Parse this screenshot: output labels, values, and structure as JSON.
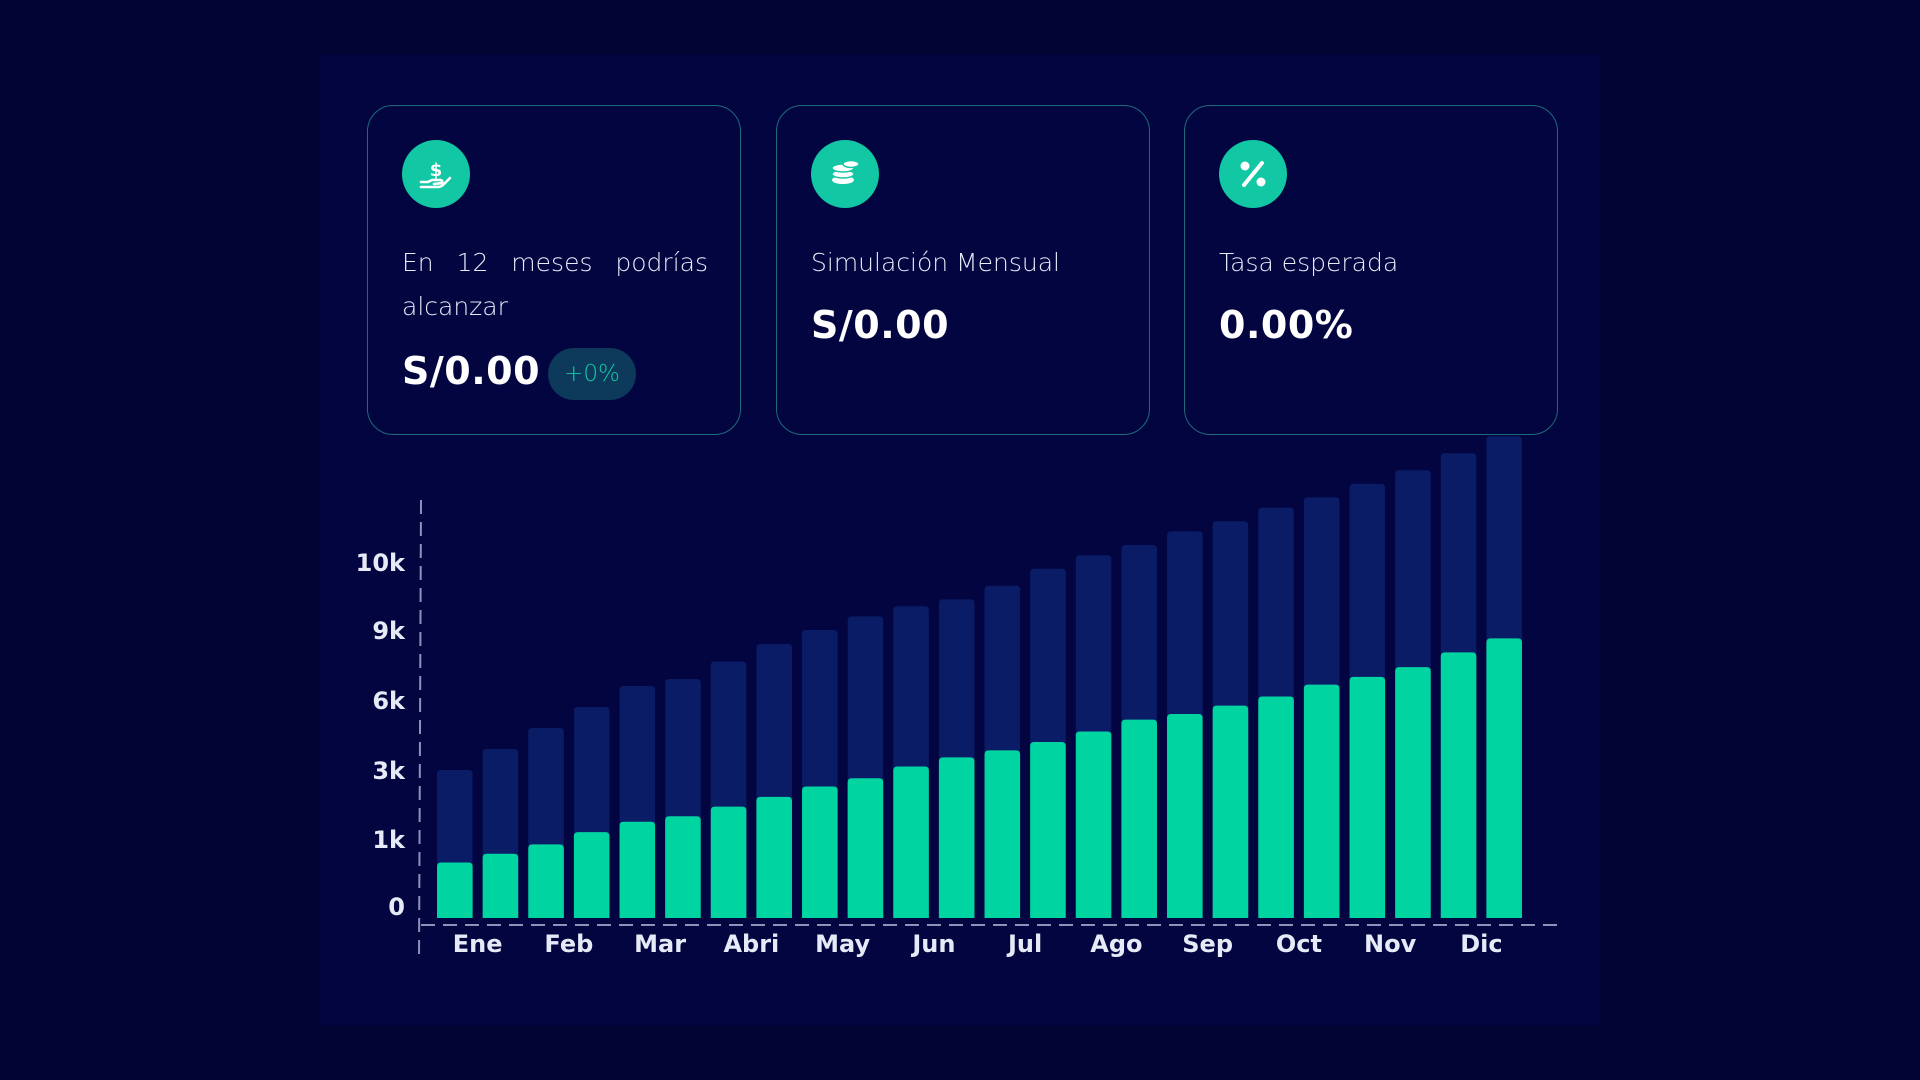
{
  "cards": [
    {
      "label": "En 12 meses podrías alcanzar",
      "value": "S/0.00",
      "badge": "+0%",
      "icon": "hand-coin-icon"
    },
    {
      "label": "Simulación Mensual",
      "value": "S/0.00",
      "icon": "coin-stack-icon"
    },
    {
      "label": "Tasa esperada",
      "value": "0.00%",
      "icon": "percent-icon"
    }
  ],
  "colors": {
    "background": "#020433",
    "accent": "#12c7a4",
    "bar_front": "#00d4a1",
    "bar_back": "#0a1c66",
    "card_border": "#1d6b7a"
  },
  "chart_data": {
    "type": "bar",
    "stacked": false,
    "y_ticks": [
      "0",
      "1k",
      "3k",
      "6k",
      "9k",
      "10k"
    ],
    "x_ticks": [
      "Ene",
      "Feb",
      "Mar",
      "Abri",
      "May",
      "Jun",
      "Jul",
      "Ago",
      "Sep",
      "Oct",
      "Nov",
      "Dic"
    ],
    "bars_per_label": 2,
    "y_scale": "non-linear (tick-indexed)",
    "series": [
      {
        "values": [
          2.0,
          2.3,
          2.6,
          2.9,
          3.2,
          3.3,
          3.55,
          3.8,
          4.0,
          4.2,
          4.35,
          4.45,
          4.65,
          4.9,
          5.1,
          5.25,
          5.45,
          5.6,
          5.8,
          5.95,
          6.15,
          6.35,
          6.6,
          6.85
        ]
      },
      {
        "values": [
          0.65,
          0.78,
          0.92,
          1.1,
          1.25,
          1.33,
          1.47,
          1.61,
          1.76,
          1.88,
          2.05,
          2.18,
          2.28,
          2.4,
          2.55,
          2.72,
          2.8,
          2.92,
          3.05,
          3.22,
          3.33,
          3.47,
          3.68,
          3.88
        ]
      }
    ]
  }
}
